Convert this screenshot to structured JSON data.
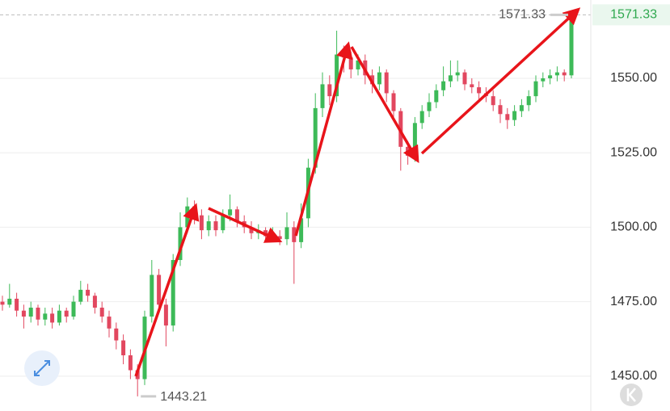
{
  "chart_data": {
    "type": "candlestick",
    "open": [
      1475,
      1474,
      1476,
      1472,
      1470,
      1473,
      1469,
      1471,
      1468,
      1472,
      1470,
      1475,
      1479,
      1477,
      1473,
      1470,
      1466,
      1462,
      1457,
      1452,
      1449,
      1470,
      1484,
      1474,
      1467,
      1489,
      1500,
      1507,
      1504,
      1499,
      1502,
      1499,
      1504,
      1506,
      1502,
      1500,
      1498,
      1499,
      1497,
      1497,
      1496,
      1500,
      1495,
      1503,
      1520,
      1540,
      1548,
      1544,
      1558,
      1557,
      1553,
      1556,
      1551,
      1548,
      1552,
      1545,
      1539,
      1527,
      1524,
      1535,
      1539,
      1542,
      1546,
      1549,
      1551,
      1552,
      1548,
      1547,
      1545,
      1544,
      1541,
      1538,
      1536,
      1539,
      1541,
      1544,
      1549,
      1550,
      1551,
      1552,
      1551
    ],
    "high": [
      1477,
      1481,
      1478,
      1474,
      1475,
      1474,
      1473,
      1473,
      1474,
      1473,
      1477,
      1482,
      1481,
      1478,
      1475,
      1472,
      1468,
      1464,
      1459,
      1454,
      1472,
      1489,
      1486,
      1476,
      1491,
      1505,
      1510,
      1509,
      1506,
      1504,
      1504,
      1506,
      1511,
      1507,
      1504,
      1502,
      1501,
      1500,
      1500,
      1499,
      1505,
      1502,
      1508,
      1523,
      1545,
      1552,
      1551,
      1566,
      1561,
      1559,
      1558,
      1558,
      1553,
      1554,
      1553,
      1546,
      1540,
      1529,
      1537,
      1541,
      1545,
      1548,
      1554,
      1556,
      1556,
      1553,
      1550,
      1549,
      1547,
      1546,
      1543,
      1540,
      1541,
      1543,
      1546,
      1551,
      1552,
      1553,
      1554,
      1553,
      1572
    ],
    "low": [
      1472,
      1473,
      1470,
      1466,
      1468,
      1467,
      1467,
      1466,
      1467,
      1468,
      1469,
      1474,
      1475,
      1471,
      1468,
      1463,
      1459,
      1454,
      1449,
      1443.21,
      1447,
      1468,
      1472,
      1460,
      1465,
      1487,
      1498,
      1501,
      1496,
      1497,
      1497,
      1498,
      1502,
      1500,
      1498,
      1496,
      1496,
      1495,
      1495,
      1494,
      1494,
      1481,
      1493,
      1500,
      1518,
      1537,
      1541,
      1542,
      1552,
      1550,
      1551,
      1548,
      1545,
      1546,
      1542,
      1536,
      1519,
      1521,
      1522,
      1533,
      1537,
      1540,
      1544,
      1547,
      1549,
      1546,
      1545,
      1543,
      1542,
      1539,
      1535,
      1533,
      1534,
      1537,
      1539,
      1542,
      1547,
      1548,
      1549,
      1549,
      1550
    ],
    "close": [
      1474,
      1476,
      1472,
      1470,
      1473,
      1469,
      1471,
      1468,
      1472,
      1470,
      1475,
      1479,
      1477,
      1473,
      1470,
      1466,
      1462,
      1457,
      1452,
      1449,
      1470,
      1484,
      1474,
      1467,
      1489,
      1500,
      1507,
      1504,
      1499,
      1502,
      1499,
      1504,
      1506,
      1502,
      1500,
      1498,
      1499,
      1497,
      1497,
      1496,
      1500,
      1495,
      1503,
      1520,
      1540,
      1548,
      1544,
      1558,
      1557,
      1553,
      1556,
      1551,
      1548,
      1552,
      1545,
      1539,
      1527,
      1524,
      1535,
      1539,
      1542,
      1546,
      1549,
      1551,
      1552,
      1548,
      1547,
      1545,
      1544,
      1541,
      1538,
      1536,
      1539,
      1541,
      1544,
      1549,
      1550,
      1551,
      1552,
      1551,
      1571.33
    ],
    "up_color": "#3dba58",
    "down_color": "#e2475f",
    "ylim": [
      1438.3,
      1576.3
    ],
    "yticks": [
      {
        "value": 1450,
        "label": "1450.00"
      },
      {
        "value": 1475,
        "label": "1475.00"
      },
      {
        "value": 1500,
        "label": "1500.00"
      },
      {
        "value": 1525,
        "label": "1525.00"
      },
      {
        "value": 1550,
        "label": "1550.00"
      }
    ],
    "grid": true
  }
}
